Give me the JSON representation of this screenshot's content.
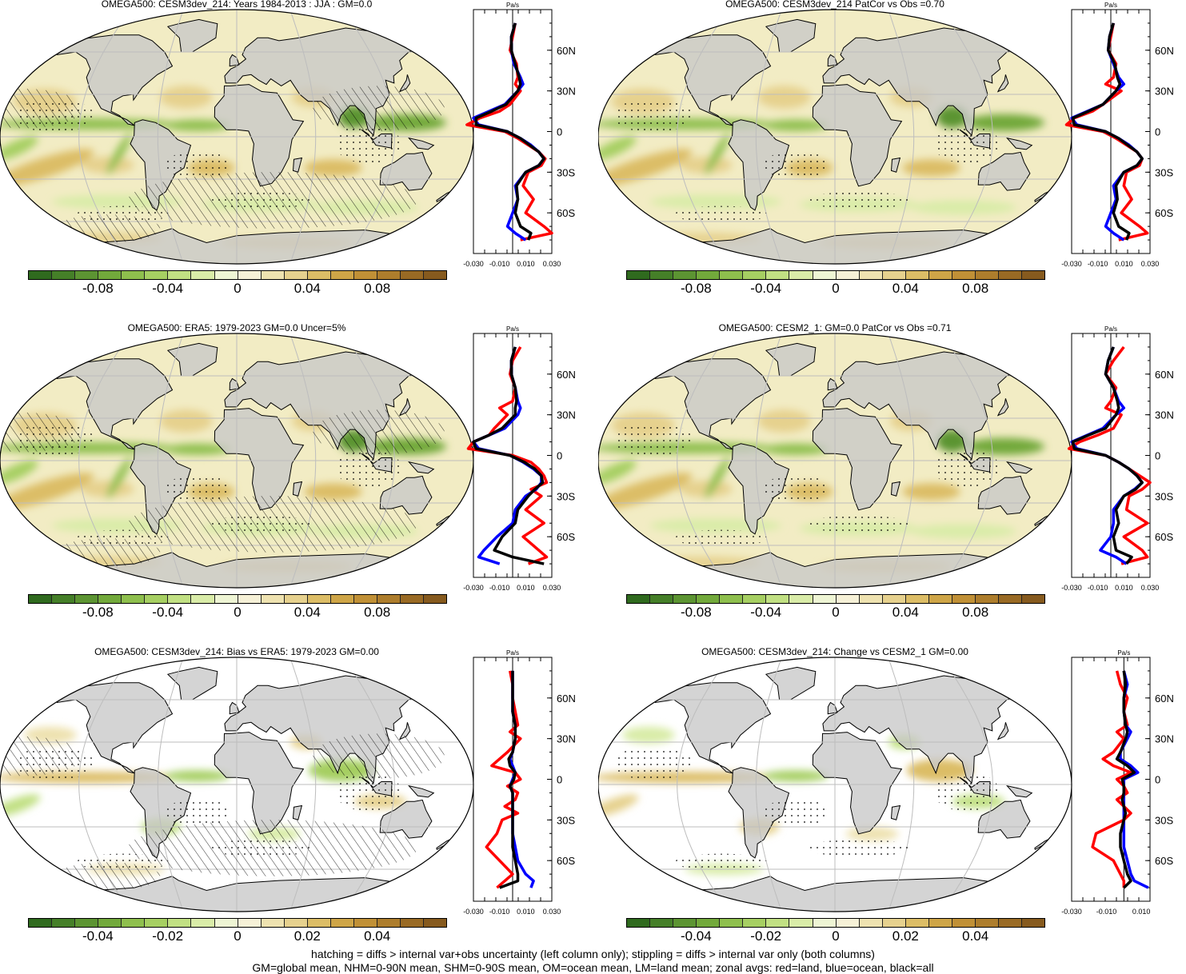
{
  "colors": {
    "land": "#c8c8c8",
    "line_land": "#ff0000",
    "line_ocean": "#0000ff",
    "line_all": "#000000",
    "cbar_greens_dark_to_light": [
      "#2f6a1e",
      "#457f28",
      "#5c9432",
      "#72a93b",
      "#8ebf4d",
      "#a6cf62",
      "#c1e083",
      "#d9eca8",
      "#eef5d4"
    ],
    "cbar_browns_light_to_dark": [
      "#f6f1d7",
      "#eee2b0",
      "#e6d18e",
      "#dcbd66",
      "#cea547",
      "#c09036",
      "#ad7d2c",
      "#996a24",
      "#865a1e"
    ]
  },
  "panels": [
    {
      "title": "OMEGA500: CESM3dev_214: Years 1984-2013 : JJA : GM=0.0",
      "cbar_ticks": [
        "-0.08",
        "-0.04",
        "0",
        "0.04",
        "0.08"
      ],
      "profile_unit": "Pa/s",
      "profile_xticks": [
        "-0.030",
        "-0.010",
        "0.010",
        "0.030"
      ],
      "profile_yticks": [
        "60N",
        "30N",
        "0",
        "30S",
        "60S"
      ]
    },
    {
      "title": "OMEGA500: CESM3dev_214 PatCor vs Obs =0.70",
      "cbar_ticks": [
        "-0.08",
        "-0.04",
        "0",
        "0.04",
        "0.08"
      ],
      "profile_unit": "Pa/s",
      "profile_xticks": [
        "-0.030",
        "-0.010",
        "0.010",
        "0.030"
      ],
      "profile_yticks": [
        "60N",
        "30N",
        "0",
        "30S",
        "60S"
      ]
    },
    {
      "title": "OMEGA500: ERA5: 1979-2023 GM=0.0 Uncer=5%",
      "cbar_ticks": [
        "-0.08",
        "-0.04",
        "0",
        "0.04",
        "0.08"
      ],
      "profile_unit": "Pa/s",
      "profile_xticks": [
        "-0.030",
        "-0.010",
        "0.010",
        "0.030"
      ],
      "profile_yticks": [
        "60N",
        "30N",
        "0",
        "30S",
        "60S"
      ]
    },
    {
      "title": "OMEGA500: CESM2_1: GM=0.0 PatCor vs Obs =0.71",
      "cbar_ticks": [
        "-0.08",
        "-0.04",
        "0",
        "0.04",
        "0.08"
      ],
      "profile_unit": "Pa/s",
      "profile_xticks": [
        "-0.030",
        "-0.010",
        "0.010",
        "0.030"
      ],
      "profile_yticks": [
        "60N",
        "30N",
        "0",
        "30S",
        "60S"
      ]
    },
    {
      "title": "OMEGA500: CESM3dev_214: Bias vs ERA5: 1979-2023 GM=0.00",
      "cbar_ticks": [
        "-0.04",
        "-0.02",
        "0",
        "0.02",
        "0.04"
      ],
      "profile_unit": "Pa/s",
      "profile_xticks": [
        "-0.030",
        "-0.010",
        "0.010",
        "0.030"
      ],
      "profile_yticks": [
        "60N",
        "30N",
        "0",
        "30S",
        "60S"
      ]
    },
    {
      "title": "OMEGA500: CESM3dev_214: Change vs CESM2_1 GM=0.00",
      "cbar_ticks": [
        "-0.04",
        "-0.02",
        "0",
        "0.02",
        "0.04"
      ],
      "profile_unit": "Pa/s",
      "profile_xticks": [
        "-0.030",
        "-0.010",
        "0.010"
      ],
      "profile_yticks": [
        "60N",
        "30N",
        "0",
        "30S",
        "60S"
      ]
    }
  ],
  "footer": {
    "line1": "hatching = diffs > internal var+obs uncertainty (left column only); stippling = diffs > internal var only (both columns)",
    "line2": "GM=global mean, NHM=0-90N mean, SHM=0-90S mean, OM=ocean mean, LM=land mean; zonal avgs: red=land, blue=ocean, black=all"
  },
  "chart_data": [
    {
      "type": "heatmap",
      "title": "OMEGA500: CESM3dev_214: Years 1984-2013 : JJA : GM=0.0",
      "colorbar_ticks": [
        -0.08,
        -0.04,
        0,
        0.04,
        0.08
      ],
      "zonal_profile": {
        "type": "line",
        "unit": "Pa/s",
        "xlim": [
          -0.03,
          0.03
        ],
        "ytick_labels": [
          "60N",
          "30N",
          "0",
          "30S",
          "60S"
        ],
        "lat": [
          80,
          70,
          60,
          50,
          40,
          35,
          30,
          20,
          15,
          10,
          5,
          0,
          -5,
          -10,
          -15,
          -20,
          -25,
          -30,
          -40,
          -50,
          -60,
          -70,
          -75,
          -80
        ],
        "series": [
          {
            "name": "land",
            "values": [
              0.002,
              0.0,
              -0.002,
              0.003,
              0.004,
              0.002,
              0.006,
              -0.002,
              -0.01,
              -0.025,
              -0.035,
              -0.006,
              0.004,
              0.012,
              0.02,
              0.025,
              0.022,
              0.012,
              0.008,
              0.016,
              0.01,
              0.024,
              0.03,
              0.006
            ]
          },
          {
            "name": "ocean",
            "values": [
              0.002,
              -0.001,
              -0.001,
              0.001,
              0.006,
              0.008,
              0.004,
              -0.006,
              -0.018,
              -0.03,
              -0.026,
              -0.004,
              0.006,
              0.014,
              0.02,
              0.024,
              0.02,
              0.01,
              0.002,
              0.004,
              0.0,
              -0.004,
              0.002,
              0.01
            ]
          },
          {
            "name": "all",
            "values": [
              0.002,
              -0.001,
              -0.001,
              0.002,
              0.005,
              0.006,
              0.004,
              -0.005,
              -0.016,
              -0.028,
              -0.028,
              -0.004,
              0.006,
              0.013,
              0.02,
              0.024,
              0.02,
              0.01,
              0.003,
              0.004,
              0.002,
              0.006,
              0.014,
              0.012
            ]
          }
        ]
      }
    },
    {
      "type": "heatmap",
      "title": "OMEGA500: CESM3dev_214 PatCor vs Obs =0.70",
      "colorbar_ticks": [
        -0.08,
        -0.04,
        0,
        0.04,
        0.08
      ],
      "zonal_profile": {
        "type": "line",
        "unit": "Pa/s",
        "xlim": [
          -0.03,
          0.03
        ],
        "ytick_labels": [
          "60N",
          "30N",
          "0",
          "30S",
          "60S"
        ],
        "lat": [
          80,
          70,
          60,
          50,
          40,
          35,
          30,
          20,
          15,
          10,
          5,
          0,
          -5,
          -10,
          -15,
          -20,
          -25,
          -30,
          -40,
          -50,
          -60,
          -70,
          -75,
          -80
        ],
        "series": [
          {
            "name": "land",
            "values": [
              0.002,
              0.0,
              -0.002,
              0.004,
              0.002,
              -0.004,
              0.008,
              -0.006,
              -0.014,
              -0.028,
              -0.034,
              -0.006,
              0.004,
              0.012,
              0.02,
              0.024,
              0.022,
              0.012,
              0.01,
              0.016,
              0.008,
              0.022,
              0.028,
              0.006
            ]
          },
          {
            "name": "ocean",
            "values": [
              0.002,
              -0.001,
              -0.002,
              0.002,
              0.006,
              0.01,
              0.004,
              -0.006,
              -0.018,
              -0.03,
              -0.026,
              -0.004,
              0.006,
              0.014,
              0.02,
              0.024,
              0.02,
              0.01,
              0.002,
              0.004,
              0.0,
              -0.004,
              0.002,
              0.01
            ]
          },
          {
            "name": "all",
            "values": [
              0.002,
              -0.001,
              -0.002,
              0.003,
              0.005,
              0.007,
              0.004,
              -0.006,
              -0.017,
              -0.029,
              -0.028,
              -0.004,
              0.006,
              0.013,
              0.02,
              0.024,
              0.02,
              0.01,
              0.004,
              0.005,
              0.002,
              0.006,
              0.014,
              0.012
            ]
          }
        ]
      }
    },
    {
      "type": "heatmap",
      "title": "OMEGA500: ERA5: 1979-2023 GM=0.0 Uncer=5%",
      "colorbar_ticks": [
        -0.08,
        -0.04,
        0,
        0.04,
        0.08
      ],
      "zonal_profile": {
        "type": "line",
        "unit": "Pa/s",
        "xlim": [
          -0.03,
          0.03
        ],
        "ytick_labels": [
          "60N",
          "30N",
          "0",
          "30S",
          "60S"
        ],
        "lat": [
          80,
          70,
          60,
          50,
          40,
          35,
          30,
          20,
          15,
          10,
          5,
          0,
          -5,
          -10,
          -15,
          -20,
          -25,
          -30,
          -40,
          -50,
          -60,
          -70,
          -75,
          -80
        ],
        "series": [
          {
            "name": "land",
            "values": [
              0.006,
              0.0,
              -0.002,
              0.002,
              0.0,
              -0.01,
              -0.004,
              -0.014,
              -0.018,
              -0.03,
              -0.034,
              0.0,
              0.014,
              0.02,
              0.024,
              0.026,
              0.014,
              0.022,
              0.01,
              0.024,
              0.008,
              0.02,
              0.026,
              0.012
            ]
          },
          {
            "name": "ocean",
            "values": [
              0.002,
              -0.001,
              -0.001,
              0.002,
              0.004,
              0.006,
              0.004,
              -0.006,
              -0.018,
              -0.03,
              -0.026,
              -0.002,
              0.008,
              0.016,
              0.022,
              0.022,
              0.018,
              0.01,
              0.002,
              0.0,
              -0.012,
              -0.022,
              -0.026,
              -0.01
            ]
          },
          {
            "name": "all",
            "values": [
              0.002,
              -0.001,
              -0.001,
              0.002,
              0.003,
              0.002,
              0.002,
              -0.008,
              -0.018,
              -0.03,
              -0.028,
              -0.002,
              0.009,
              0.017,
              0.022,
              0.023,
              0.017,
              0.012,
              0.004,
              0.002,
              -0.008,
              -0.014,
              0.0,
              0.024
            ]
          }
        ]
      }
    },
    {
      "type": "heatmap",
      "title": "OMEGA500: CESM2_1: GM=0.0 PatCor vs Obs =0.71",
      "colorbar_ticks": [
        -0.08,
        -0.04,
        0,
        0.04,
        0.08
      ],
      "zonal_profile": {
        "type": "line",
        "unit": "Pa/s",
        "xlim": [
          -0.03,
          0.03
        ],
        "ytick_labels": [
          "60N",
          "30N",
          "0",
          "30S",
          "60S"
        ],
        "lat": [
          80,
          70,
          60,
          50,
          40,
          35,
          30,
          20,
          15,
          10,
          5,
          0,
          -5,
          -10,
          -15,
          -20,
          -25,
          -30,
          -40,
          -50,
          -60,
          -70,
          -75,
          -80
        ],
        "series": [
          {
            "name": "land",
            "values": [
              0.01,
              0.002,
              -0.004,
              0.004,
              0.0,
              -0.004,
              0.008,
              0.002,
              -0.01,
              -0.024,
              -0.032,
              -0.004,
              0.006,
              0.014,
              0.022,
              0.03,
              0.024,
              0.014,
              0.012,
              0.028,
              0.01,
              0.024,
              0.028,
              0.008
            ]
          },
          {
            "name": "ocean",
            "values": [
              0.002,
              -0.002,
              -0.004,
              0.002,
              0.006,
              0.01,
              0.004,
              -0.006,
              -0.018,
              -0.03,
              -0.026,
              -0.004,
              0.006,
              0.014,
              0.02,
              0.024,
              0.018,
              0.01,
              0.002,
              0.002,
              0.0,
              -0.008,
              0.004,
              0.012
            ]
          },
          {
            "name": "all",
            "values": [
              0.002,
              -0.002,
              -0.004,
              0.002,
              0.005,
              0.006,
              0.004,
              -0.004,
              -0.017,
              -0.029,
              -0.028,
              -0.004,
              0.006,
              0.014,
              0.02,
              0.024,
              0.019,
              0.01,
              0.004,
              0.006,
              0.002,
              0.004,
              0.016,
              0.012
            ]
          }
        ]
      }
    },
    {
      "type": "heatmap",
      "title": "OMEGA500: CESM3dev_214: Bias vs ERA5: 1979-2023 GM=0.00",
      "colorbar_ticks": [
        -0.04,
        -0.02,
        0,
        0.02,
        0.04
      ],
      "zonal_profile": {
        "type": "line",
        "unit": "Pa/s",
        "xlim": [
          -0.03,
          0.03
        ],
        "ytick_labels": [
          "60N",
          "30N",
          "0",
          "30S",
          "60S"
        ],
        "lat": [
          80,
          70,
          60,
          50,
          40,
          35,
          30,
          20,
          15,
          10,
          5,
          0,
          -5,
          -10,
          -15,
          -20,
          -25,
          -30,
          -40,
          -50,
          -60,
          -70,
          -75,
          -80
        ],
        "series": [
          {
            "name": "land",
            "values": [
              -0.002,
              0.0,
              0.0,
              0.002,
              0.004,
              -0.002,
              0.006,
              -0.004,
              -0.01,
              -0.016,
              0.002,
              0.006,
              -0.004,
              0.004,
              0.002,
              -0.006,
              0.004,
              -0.008,
              -0.012,
              -0.02,
              -0.01,
              0.0,
              -0.006,
              -0.012
            ]
          },
          {
            "name": "ocean",
            "values": [
              0.0,
              0.0,
              0.0,
              0.0,
              0.002,
              0.002,
              0.002,
              0.0,
              -0.002,
              0.0,
              0.002,
              0.0,
              -0.002,
              0.0,
              0.0,
              0.0,
              0.0,
              0.0,
              0.0,
              0.002,
              0.004,
              0.01,
              0.016,
              0.014
            ]
          },
          {
            "name": "all",
            "values": [
              0.0,
              0.0,
              0.0,
              0.0,
              0.002,
              0.002,
              0.002,
              0.0,
              -0.003,
              -0.002,
              0.002,
              0.001,
              -0.002,
              0.0,
              0.0,
              0.0,
              0.0,
              0.0,
              0.0,
              0.0,
              0.002,
              0.004,
              0.004,
              -0.01
            ]
          }
        ]
      }
    },
    {
      "type": "heatmap",
      "title": "OMEGA500: CESM3dev_214: Change vs CESM2_1 GM=0.00",
      "colorbar_ticks": [
        -0.04,
        -0.02,
        0,
        0.02,
        0.04
      ],
      "zonal_profile": {
        "type": "line",
        "unit": "Pa/s",
        "xlim": [
          -0.03,
          0.015
        ],
        "ytick_labels": [
          "60N",
          "30N",
          "0",
          "30S",
          "60S"
        ],
        "lat": [
          80,
          70,
          60,
          50,
          40,
          35,
          30,
          20,
          15,
          10,
          5,
          0,
          -5,
          -10,
          -15,
          -20,
          -25,
          -30,
          -40,
          -50,
          -60,
          -70,
          -75,
          -80
        ],
        "series": [
          {
            "name": "land",
            "values": [
              -0.004,
              -0.002,
              0.002,
              0.0,
              0.002,
              -0.004,
              0.0,
              -0.006,
              -0.012,
              -0.006,
              0.004,
              -0.004,
              0.0,
              0.002,
              -0.004,
              0.0,
              0.004,
              0.0,
              -0.016,
              -0.018,
              -0.006,
              -0.002,
              0.0,
              0.0
            ]
          },
          {
            "name": "ocean",
            "values": [
              0.0,
              0.002,
              0.0,
              0.0,
              0.001,
              0.004,
              0.002,
              -0.002,
              -0.002,
              0.004,
              0.008,
              0.0,
              0.0,
              0.0,
              0.0,
              0.0,
              0.0,
              0.0,
              0.0,
              0.0,
              0.002,
              0.004,
              0.006,
              0.014
            ]
          },
          {
            "name": "all",
            "values": [
              0.0,
              0.001,
              0.0,
              0.0,
              0.001,
              0.002,
              0.001,
              -0.002,
              -0.004,
              0.002,
              0.006,
              -0.001,
              0.0,
              0.0,
              -0.001,
              0.0,
              0.001,
              0.0,
              -0.002,
              -0.002,
              0.0,
              0.002,
              0.004,
              0.0
            ]
          }
        ]
      }
    }
  ]
}
